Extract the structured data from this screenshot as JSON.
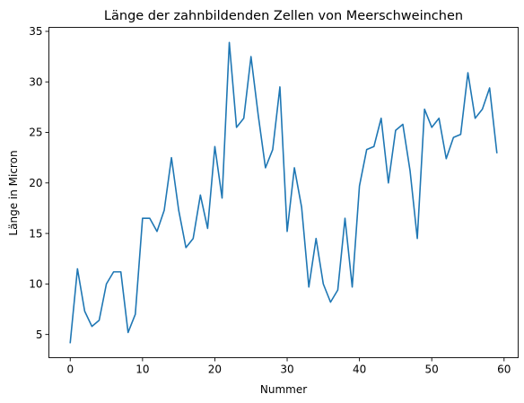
{
  "chart_data": {
    "type": "line",
    "title": "Länge der zahnbildenden Zellen von Meerschweinchen",
    "xlabel": "Nummer",
    "ylabel": "Länge in Micron",
    "xlim": [
      -2.95,
      61.95
    ],
    "ylim": [
      2.705,
      35.395
    ],
    "xticks": [
      0,
      10,
      20,
      30,
      40,
      50,
      60
    ],
    "yticks": [
      5,
      10,
      15,
      20,
      25,
      30,
      35
    ],
    "grid": false,
    "color": "#1f77b4",
    "series": [
      {
        "x": [
          0,
          1,
          2,
          3,
          4,
          5,
          6,
          7,
          8,
          9,
          10,
          11,
          12,
          13,
          14,
          15,
          16,
          17,
          18,
          19,
          20,
          21,
          22,
          23,
          24,
          25,
          26,
          27,
          28,
          29,
          30,
          31,
          32,
          33,
          34,
          35,
          36,
          37,
          38,
          39,
          40,
          41,
          42,
          43,
          44,
          45,
          46,
          47,
          48,
          49,
          50,
          51,
          52,
          53,
          54,
          55,
          56,
          57,
          58,
          59
        ],
        "values": [
          4.2,
          11.5,
          7.3,
          5.8,
          6.4,
          10.0,
          11.2,
          11.2,
          5.2,
          7.0,
          16.5,
          16.5,
          15.2,
          17.3,
          22.5,
          17.3,
          13.6,
          14.5,
          18.8,
          15.5,
          23.6,
          18.5,
          33.9,
          25.5,
          26.4,
          32.5,
          26.7,
          21.5,
          23.3,
          29.5,
          15.2,
          21.5,
          17.6,
          9.7,
          14.5,
          10.0,
          8.2,
          9.4,
          16.5,
          9.7,
          19.7,
          23.3,
          23.6,
          26.4,
          20.0,
          25.2,
          25.8,
          21.2,
          14.5,
          27.3,
          25.5,
          26.4,
          22.4,
          24.5,
          24.8,
          30.9,
          26.4,
          27.3,
          29.4,
          23.0
        ]
      }
    ]
  }
}
